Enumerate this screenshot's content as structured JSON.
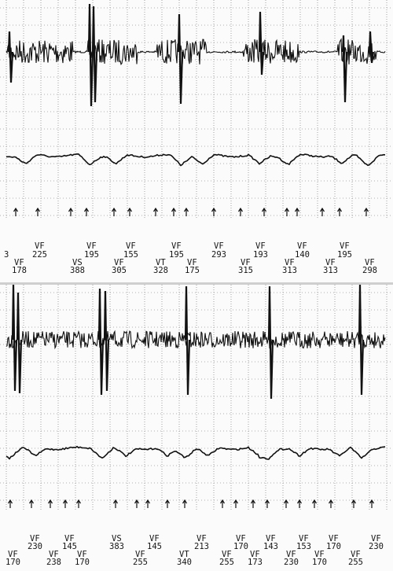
{
  "strips": [
    {
      "id": "upper",
      "markers_row1": [
        {
          "code": "",
          "value": "3"
        },
        {
          "code": "VF",
          "value": "225"
        },
        {
          "code": "VF",
          "value": "195"
        },
        {
          "code": "VF",
          "value": "155"
        },
        {
          "code": "VF",
          "value": "195"
        },
        {
          "code": "VF",
          "value": "293"
        },
        {
          "code": "VF",
          "value": "193"
        },
        {
          "code": "VF",
          "value": "140"
        },
        {
          "code": "VF",
          "value": "195"
        }
      ],
      "markers_row2": [
        {
          "code": "VF",
          "value": "178"
        },
        {
          "code": "VS",
          "value": "388"
        },
        {
          "code": "VF",
          "value": "305"
        },
        {
          "code": "VT",
          "value": "328"
        },
        {
          "code": "VF",
          "value": "175"
        },
        {
          "code": "VF",
          "value": "315"
        },
        {
          "code": "VF",
          "value": "313"
        },
        {
          "code": "VF",
          "value": "313"
        },
        {
          "code": "VF",
          "value": "298"
        }
      ]
    },
    {
      "id": "lower",
      "markers_row1": [
        {
          "code": "VF",
          "value": "230"
        },
        {
          "code": "VF",
          "value": "145"
        },
        {
          "code": "VS",
          "value": "383"
        },
        {
          "code": "VF",
          "value": "145"
        },
        {
          "code": "VF",
          "value": "213"
        },
        {
          "code": "VF",
          "value": "170"
        },
        {
          "code": "VF",
          "value": "143"
        },
        {
          "code": "VF",
          "value": "153"
        },
        {
          "code": "VF",
          "value": "170"
        },
        {
          "code": "VF",
          "value": "230"
        }
      ],
      "markers_row2": [
        {
          "code": "VF",
          "value": "170"
        },
        {
          "code": "VF",
          "value": "238"
        },
        {
          "code": "VF",
          "value": "170"
        },
        {
          "code": "VF",
          "value": "255"
        },
        {
          "code": "VT",
          "value": "340"
        },
        {
          "code": "VF",
          "value": "255"
        },
        {
          "code": "VF",
          "value": "173"
        },
        {
          "code": "VF",
          "value": "230"
        },
        {
          "code": "VF",
          "value": "170"
        },
        {
          "code": "VF",
          "value": "255"
        }
      ]
    }
  ],
  "colors": {
    "grid": "#9a9a9a",
    "trace": "#111111",
    "paper": "#fbfbfb"
  }
}
